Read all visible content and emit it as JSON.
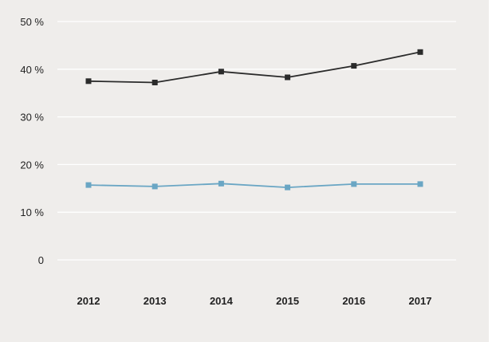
{
  "chart_data": {
    "type": "line",
    "x": [
      "2012",
      "2013",
      "2014",
      "2015",
      "2016",
      "2017"
    ],
    "y_tick_labels": [
      "50 %",
      "40 %",
      "30 %",
      "20 %",
      "10 %",
      "0"
    ],
    "y_ticks": [
      50,
      40,
      30,
      20,
      10,
      0
    ],
    "ylim": [
      0,
      50
    ],
    "grid": true,
    "series": [
      {
        "values": [
          37.5,
          37.2,
          39.5,
          38.3,
          40.7,
          43.6
        ],
        "color": "#2b2b2b",
        "marker": "square"
      },
      {
        "values": [
          15.7,
          15.4,
          16.0,
          15.2,
          15.9,
          15.9
        ],
        "color": "#6aa6c4",
        "marker": "square"
      }
    ]
  }
}
